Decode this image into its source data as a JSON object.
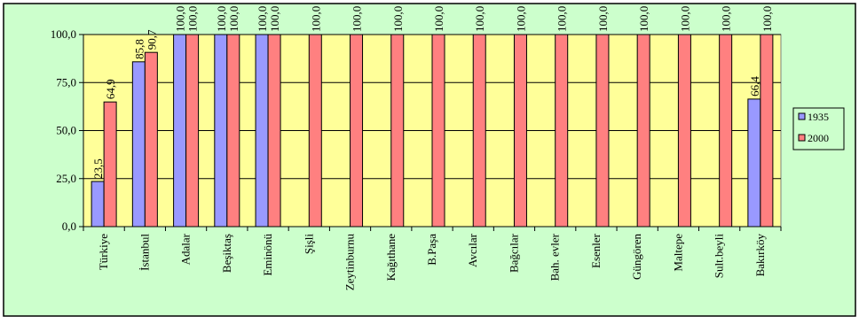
{
  "chart_data": {
    "type": "bar",
    "categories": [
      "Türkiye",
      "İstanbul",
      "Adalar",
      "Beşiktaş",
      "Eminönü",
      "Şişli",
      "Zeytinburnu",
      "Kağıthane",
      "B.Paşa",
      "Avcılar",
      "Bağcılar",
      "Bah. evler",
      "Esenler",
      "Güngören",
      "Maltepe",
      "Sult.beyli",
      "Bakırköy"
    ],
    "series": [
      {
        "name": "1935",
        "values": [
          23.5,
          85.8,
          100.0,
          100.0,
          100.0,
          null,
          null,
          null,
          null,
          null,
          null,
          null,
          null,
          null,
          null,
          null,
          66.4
        ],
        "labels": [
          "23,5",
          "85,8",
          "100,0",
          "100,0",
          "100,0",
          "",
          "",
          "",
          "",
          "",
          "",
          "",
          "",
          "",
          "",
          "",
          "66,4"
        ]
      },
      {
        "name": "2000",
        "values": [
          64.9,
          90.7,
          100.0,
          100.0,
          100.0,
          100.0,
          100.0,
          100.0,
          100.0,
          100.0,
          100.0,
          100.0,
          100.0,
          100.0,
          100.0,
          100.0,
          100.0
        ],
        "labels": [
          "64,9",
          "90,7",
          "100,0",
          "100,0",
          "100,0",
          "100,0",
          "100,0",
          "100,0",
          "100,0",
          "100,0",
          "100,0",
          "100,0",
          "100,0",
          "100,0",
          "100,0",
          "100,0",
          "100,0"
        ]
      }
    ],
    "ylim": [
      0,
      100
    ],
    "yticks": [
      0,
      25,
      50,
      75,
      100
    ],
    "ytick_labels": [
      "0,0",
      "25,0",
      "50,0",
      "75,0",
      "100,0"
    ],
    "grid": true,
    "legend_position": "right",
    "title": "",
    "xlabel": "",
    "ylabel": "",
    "colors": {
      "background": "#ccffcc",
      "plot_area": "#ffff99",
      "1935": "#9999ff",
      "2000": "#ff8080"
    }
  }
}
